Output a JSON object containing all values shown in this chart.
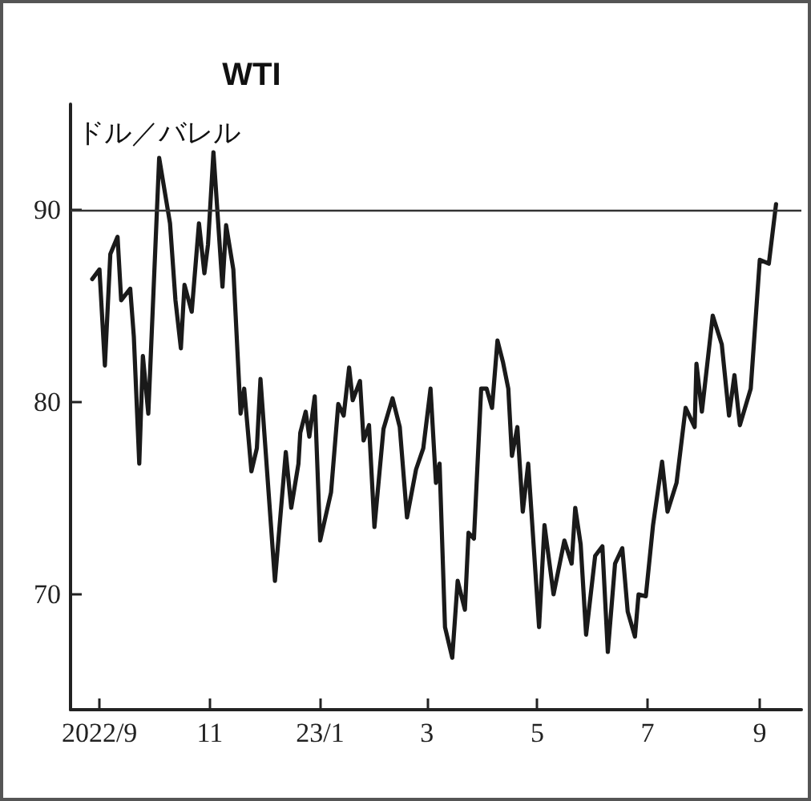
{
  "chart_data": {
    "type": "line",
    "title": "WTI",
    "ylabel": "ドル／バレル",
    "x": [
      "2022-08-28",
      "2022-09-01",
      "2022-09-04",
      "2022-09-07",
      "2022-09-11",
      "2022-09-13",
      "2022-09-18",
      "2022-09-20",
      "2022-09-23",
      "2022-09-25",
      "2022-09-28",
      "2022-10-04",
      "2022-10-10",
      "2022-10-13",
      "2022-10-16",
      "2022-10-18",
      "2022-10-22",
      "2022-10-26",
      "2022-10-29",
      "2022-10-31",
      "2022-11-03",
      "2022-11-08",
      "2022-11-10",
      "2022-11-14",
      "2022-11-18",
      "2022-11-20",
      "2022-11-24",
      "2022-11-27",
      "2022-11-29",
      "2022-12-07",
      "2022-12-13",
      "2022-12-16",
      "2022-12-20",
      "2022-12-21",
      "2022-12-24",
      "2022-12-26",
      "2022-12-29",
      "2023-01-01",
      "2023-01-07",
      "2023-01-11",
      "2023-01-14",
      "2023-01-17",
      "2023-01-19",
      "2023-01-23",
      "2023-01-25",
      "2023-01-28",
      "2023-01-31",
      "2023-02-05",
      "2023-02-10",
      "2023-02-14",
      "2023-02-18",
      "2023-02-23",
      "2023-02-27",
      "2023-03-03",
      "2023-03-06",
      "2023-03-08",
      "2023-03-11",
      "2023-03-15",
      "2023-03-18",
      "2023-03-22",
      "2023-03-24",
      "2023-03-27",
      "2023-03-31",
      "2023-04-03",
      "2023-04-06",
      "2023-04-09",
      "2023-04-12",
      "2023-04-15",
      "2023-04-17",
      "2023-04-20",
      "2023-04-23",
      "2023-04-26",
      "2023-05-02",
      "2023-05-05",
      "2023-05-10",
      "2023-05-16",
      "2023-05-20",
      "2023-05-22",
      "2023-05-25",
      "2023-05-28",
      "2023-06-02",
      "2023-06-06",
      "2023-06-09",
      "2023-06-13",
      "2023-06-17",
      "2023-06-20",
      "2023-06-24",
      "2023-06-26",
      "2023-06-30",
      "2023-07-04",
      "2023-07-09",
      "2023-07-12",
      "2023-07-17",
      "2023-07-22",
      "2023-07-27",
      "2023-07-28",
      "2023-07-31",
      "2023-08-06",
      "2023-08-11",
      "2023-08-15",
      "2023-08-18",
      "2023-08-21",
      "2023-08-27",
      "2023-09-01",
      "2023-09-06",
      "2023-09-10"
    ],
    "series": [
      {
        "color": "#1a1a1a",
        "values": [
          86.4,
          86.9,
          81.9,
          87.7,
          88.6,
          85.3,
          85.9,
          83.4,
          76.8,
          82.4,
          79.4,
          92.7,
          89.3,
          85.3,
          82.8,
          86.1,
          84.7,
          89.3,
          86.7,
          88.2,
          93.0,
          86.0,
          89.2,
          86.9,
          79.4,
          80.7,
          76.4,
          77.6,
          81.2,
          70.7,
          77.4,
          74.5,
          76.8,
          78.4,
          79.5,
          78.2,
          80.3,
          72.8,
          75.3,
          79.9,
          79.3,
          81.8,
          80.1,
          81.1,
          78.0,
          78.8,
          73.5,
          78.6,
          80.2,
          78.7,
          74.0,
          76.5,
          77.6,
          80.7,
          75.8,
          76.8,
          68.3,
          66.7,
          70.7,
          69.2,
          73.2,
          72.9,
          80.7,
          80.7,
          79.7,
          83.2,
          82.1,
          80.7,
          77.2,
          78.7,
          74.3,
          76.8,
          68.3,
          73.6,
          70.0,
          72.8,
          71.6,
          74.5,
          72.6,
          67.9,
          72.0,
          72.5,
          67.0,
          71.6,
          72.4,
          69.1,
          67.8,
          70.0,
          69.9,
          73.6,
          76.9,
          74.3,
          75.8,
          79.7,
          78.7,
          82.0,
          79.5,
          84.5,
          83.0,
          79.3,
          81.4,
          78.8,
          80.7,
          87.4,
          87.2,
          90.3
        ]
      }
    ],
    "xlim": [
      "2022-08-16",
      "2023-09-24"
    ],
    "xticks": [
      {
        "value": "2022-09-01",
        "label": "2022/9"
      },
      {
        "value": "2022-11-01",
        "label": "11"
      },
      {
        "value": "2023-01-01",
        "label": "23/1"
      },
      {
        "value": "2023-03-01",
        "label": "3"
      },
      {
        "value": "2023-05-01",
        "label": "5"
      },
      {
        "value": "2023-07-01",
        "label": "7"
      },
      {
        "value": "2023-09-01",
        "label": "9"
      }
    ],
    "ylim": [
      64,
      95.5
    ],
    "yticks": [
      70,
      80,
      90
    ],
    "ref_lines": [
      {
        "axis": "y",
        "value": 90,
        "color": "#333333",
        "line_style": "solid"
      }
    ],
    "grid": false,
    "marker": "none",
    "line_style": "solid"
  }
}
